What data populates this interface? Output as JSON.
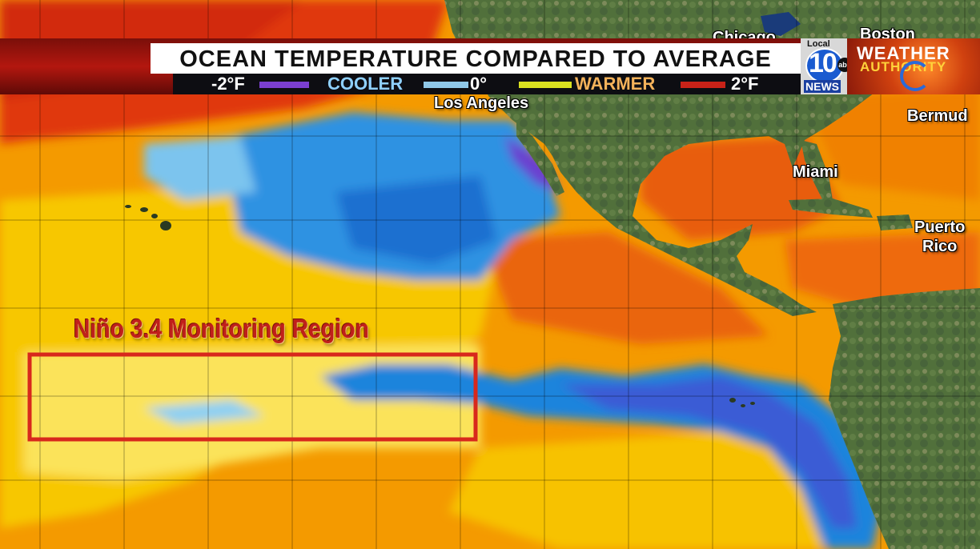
{
  "header": {
    "title": "OCEAN TEMPERATURE COMPARED TO AVERAGE",
    "scale": {
      "min_label": "-2°F",
      "cooler_label": "COOLER",
      "zero_label": "0°",
      "warmer_label": "WARMER",
      "max_label": "2°F"
    }
  },
  "branding": {
    "station_small": "Local",
    "station_number": "10",
    "station_word": "NEWS",
    "network": "abc",
    "segment_line1": "WEATHER",
    "segment_line2": "AUTHORITY"
  },
  "cities": {
    "chicago": "Chicago",
    "boston": "Boston",
    "los_angeles": "Los Angeles",
    "bermuda": "Bermud",
    "miami": "Miami",
    "puerto_rico_line1": "Puerto",
    "puerto_rico_line2": "Rico"
  },
  "annotation": {
    "region_label": "Niño 3.4 Monitoring Region"
  },
  "colors": {
    "very_cool": "#7b3fd0",
    "cool": "#1e8fe0",
    "slightly_cool": "#7ec8f0",
    "neutral": "#fff27a",
    "slightly_warm": "#f6c000",
    "warm": "#f28a00",
    "very_warm": "#e23a10",
    "land": "#4f6a3a",
    "region_box": "#d8281c"
  }
}
